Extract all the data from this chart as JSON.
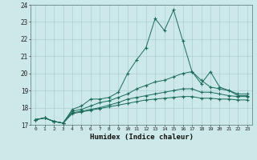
{
  "xlabel": "Humidex (Indice chaleur)",
  "background_color": "#cce8e8",
  "grid_color": "#aacfcf",
  "line_color": "#1a6b5a",
  "xlim": [
    -0.5,
    23.5
  ],
  "ylim": [
    17,
    24
  ],
  "xticks": [
    0,
    1,
    2,
    3,
    4,
    5,
    6,
    7,
    8,
    9,
    10,
    11,
    12,
    13,
    14,
    15,
    16,
    17,
    18,
    19,
    20,
    21,
    22,
    23
  ],
  "yticks": [
    17,
    18,
    19,
    20,
    21,
    22,
    23,
    24
  ],
  "series": [
    [
      17.3,
      17.4,
      17.2,
      17.1,
      17.9,
      18.1,
      18.5,
      18.5,
      18.6,
      18.9,
      20.0,
      20.8,
      21.5,
      23.2,
      22.5,
      23.7,
      21.9,
      20.1,
      19.4,
      20.1,
      19.2,
      19.0,
      18.7,
      18.7
    ],
    [
      17.3,
      17.4,
      17.2,
      17.1,
      17.8,
      17.9,
      18.1,
      18.3,
      18.4,
      18.6,
      18.8,
      19.1,
      19.3,
      19.5,
      19.6,
      19.8,
      20.0,
      20.1,
      19.6,
      19.2,
      19.1,
      19.0,
      18.8,
      18.8
    ],
    [
      17.3,
      17.4,
      17.2,
      17.1,
      17.7,
      17.8,
      17.9,
      18.0,
      18.15,
      18.3,
      18.5,
      18.6,
      18.7,
      18.8,
      18.9,
      19.0,
      19.1,
      19.1,
      18.9,
      18.9,
      18.8,
      18.7,
      18.65,
      18.65
    ],
    [
      17.3,
      17.4,
      17.2,
      17.1,
      17.65,
      17.75,
      17.85,
      17.95,
      18.05,
      18.15,
      18.25,
      18.35,
      18.45,
      18.5,
      18.55,
      18.6,
      18.65,
      18.65,
      18.55,
      18.55,
      18.5,
      18.5,
      18.45,
      18.45
    ]
  ]
}
